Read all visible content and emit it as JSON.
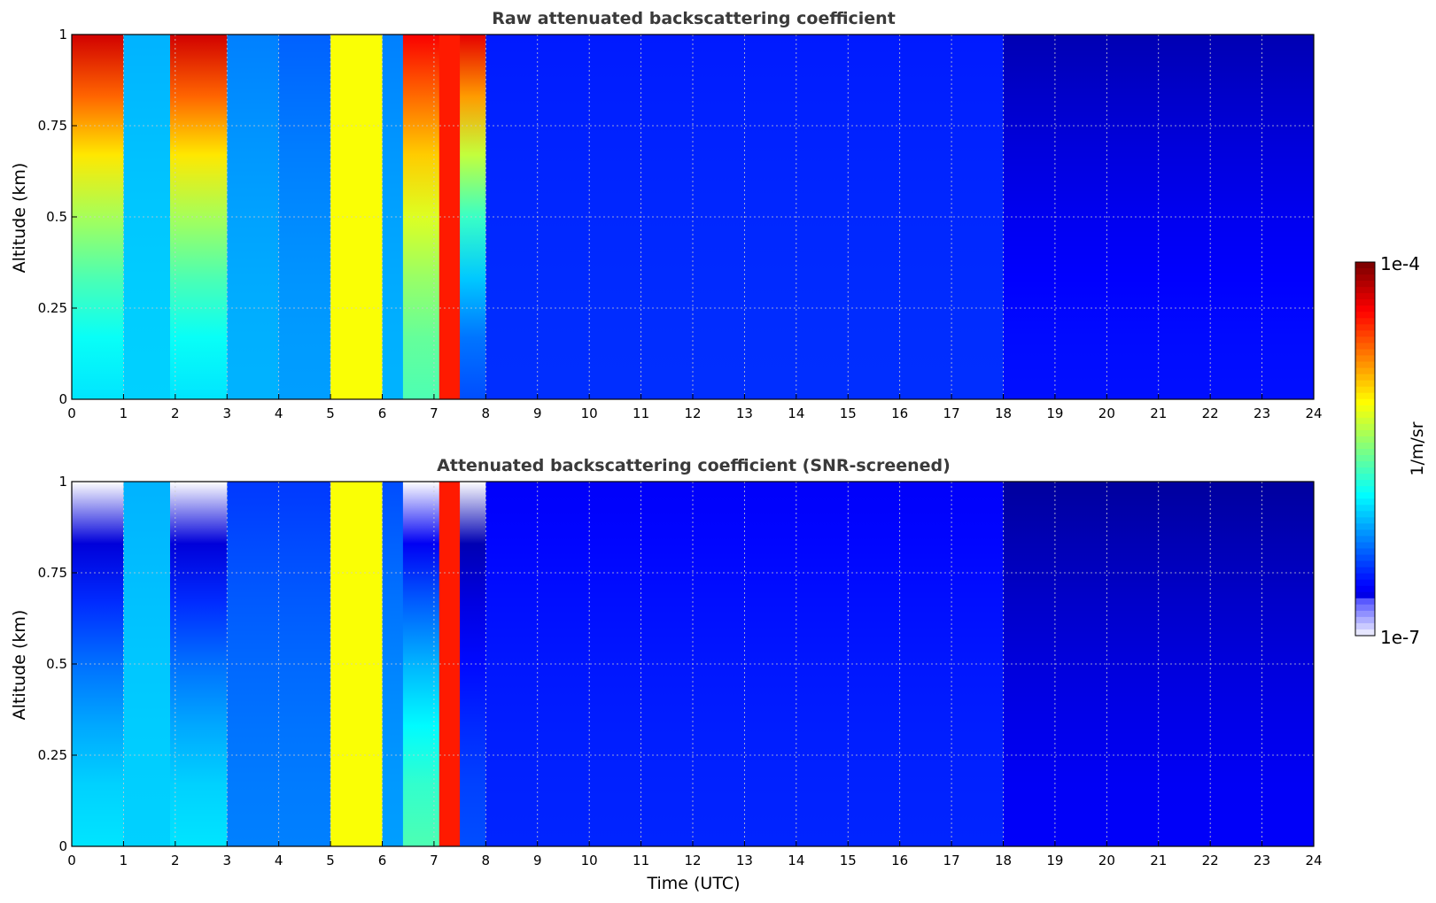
{
  "chart_data": [
    {
      "type": "heatmap",
      "title": "Raw attenuated backscattering coefficient",
      "xlabel": "",
      "ylabel": "Altitude (km)",
      "xlim": [
        0,
        24
      ],
      "ylim": [
        0,
        1
      ],
      "x_ticks": [
        "0",
        "1",
        "2",
        "3",
        "4",
        "5",
        "6",
        "7",
        "8",
        "9",
        "10",
        "11",
        "12",
        "13",
        "14",
        "15",
        "16",
        "17",
        "18",
        "19",
        "20",
        "21",
        "22",
        "23",
        "24"
      ],
      "y_ticks": [
        "0",
        "0.25",
        "0.5",
        "0.75",
        "1"
      ],
      "grid": true,
      "color_scale": "log",
      "segments": [
        {
          "x": [
            0,
            1.0
          ],
          "level": 0.35,
          "top_level": 0.92
        },
        {
          "x": [
            1.0,
            1.9
          ],
          "level": 0.33,
          "top_level": 0.3
        },
        {
          "x": [
            1.9,
            3.0
          ],
          "level": 0.35,
          "top_level": 0.92
        },
        {
          "x": [
            3.0,
            4.0
          ],
          "level": 0.3,
          "top_level": 0.25
        },
        {
          "x": [
            4.0,
            5.0
          ],
          "level": 0.28,
          "top_level": 0.22
        },
        {
          "x": [
            5.0,
            6.0
          ],
          "level": 0.62,
          "top_level": 0.62
        },
        {
          "x": [
            6.0,
            6.4
          ],
          "level": 0.3,
          "top_level": 0.25
        },
        {
          "x": [
            6.4,
            7.1
          ],
          "level": 0.45,
          "top_level": 0.88
        },
        {
          "x": [
            7.1,
            7.5
          ],
          "level": 0.85,
          "top_level": 0.85
        },
        {
          "x": [
            7.5,
            8.0
          ],
          "level": 0.2,
          "top_level": 0.9
        },
        {
          "x": [
            8.0,
            18.0
          ],
          "level": 0.17,
          "top_level": 0.15
        },
        {
          "x": [
            18.0,
            24.0
          ],
          "level": 0.14,
          "top_level": 0.05
        }
      ]
    },
    {
      "type": "heatmap",
      "title": "Attenuated backscattering coefficient (SNR-screened)",
      "xlabel": "Time (UTC)",
      "ylabel": "Altitude (km)",
      "xlim": [
        0,
        24
      ],
      "ylim": [
        0,
        1
      ],
      "x_ticks": [
        "0",
        "1",
        "2",
        "3",
        "4",
        "5",
        "6",
        "7",
        "8",
        "9",
        "10",
        "11",
        "12",
        "13",
        "14",
        "15",
        "16",
        "17",
        "18",
        "19",
        "20",
        "21",
        "22",
        "23",
        "24"
      ],
      "y_ticks": [
        "0",
        "0.25",
        "0.5",
        "0.75",
        "1"
      ],
      "grid": true,
      "color_scale": "log",
      "segments": [
        {
          "x": [
            0,
            1.0
          ],
          "level": 0.35,
          "top_level": 0.0
        },
        {
          "x": [
            1.0,
            1.9
          ],
          "level": 0.33,
          "top_level": 0.3
        },
        {
          "x": [
            1.9,
            3.0
          ],
          "level": 0.35,
          "top_level": 0.0
        },
        {
          "x": [
            3.0,
            4.0
          ],
          "level": 0.25,
          "top_level": 0.18
        },
        {
          "x": [
            4.0,
            5.0
          ],
          "level": 0.25,
          "top_level": 0.18
        },
        {
          "x": [
            5.0,
            6.0
          ],
          "level": 0.62,
          "top_level": 0.62
        },
        {
          "x": [
            6.0,
            6.4
          ],
          "level": 0.28,
          "top_level": 0.2
        },
        {
          "x": [
            6.4,
            7.1
          ],
          "level": 0.45,
          "top_level": 0.0
        },
        {
          "x": [
            7.1,
            7.5
          ],
          "level": 0.85,
          "top_level": 0.85
        },
        {
          "x": [
            7.5,
            8.0
          ],
          "level": 0.2,
          "top_level": 0.0
        },
        {
          "x": [
            8.0,
            18.0
          ],
          "level": 0.16,
          "top_level": 0.12
        },
        {
          "x": [
            18.0,
            24.0
          ],
          "level": 0.12,
          "top_level": 0.03
        }
      ]
    }
  ],
  "colorbar": {
    "label": "1/m/sr",
    "max_label": "1e-4",
    "min_label": "1e-7",
    "colormap": "jet"
  }
}
